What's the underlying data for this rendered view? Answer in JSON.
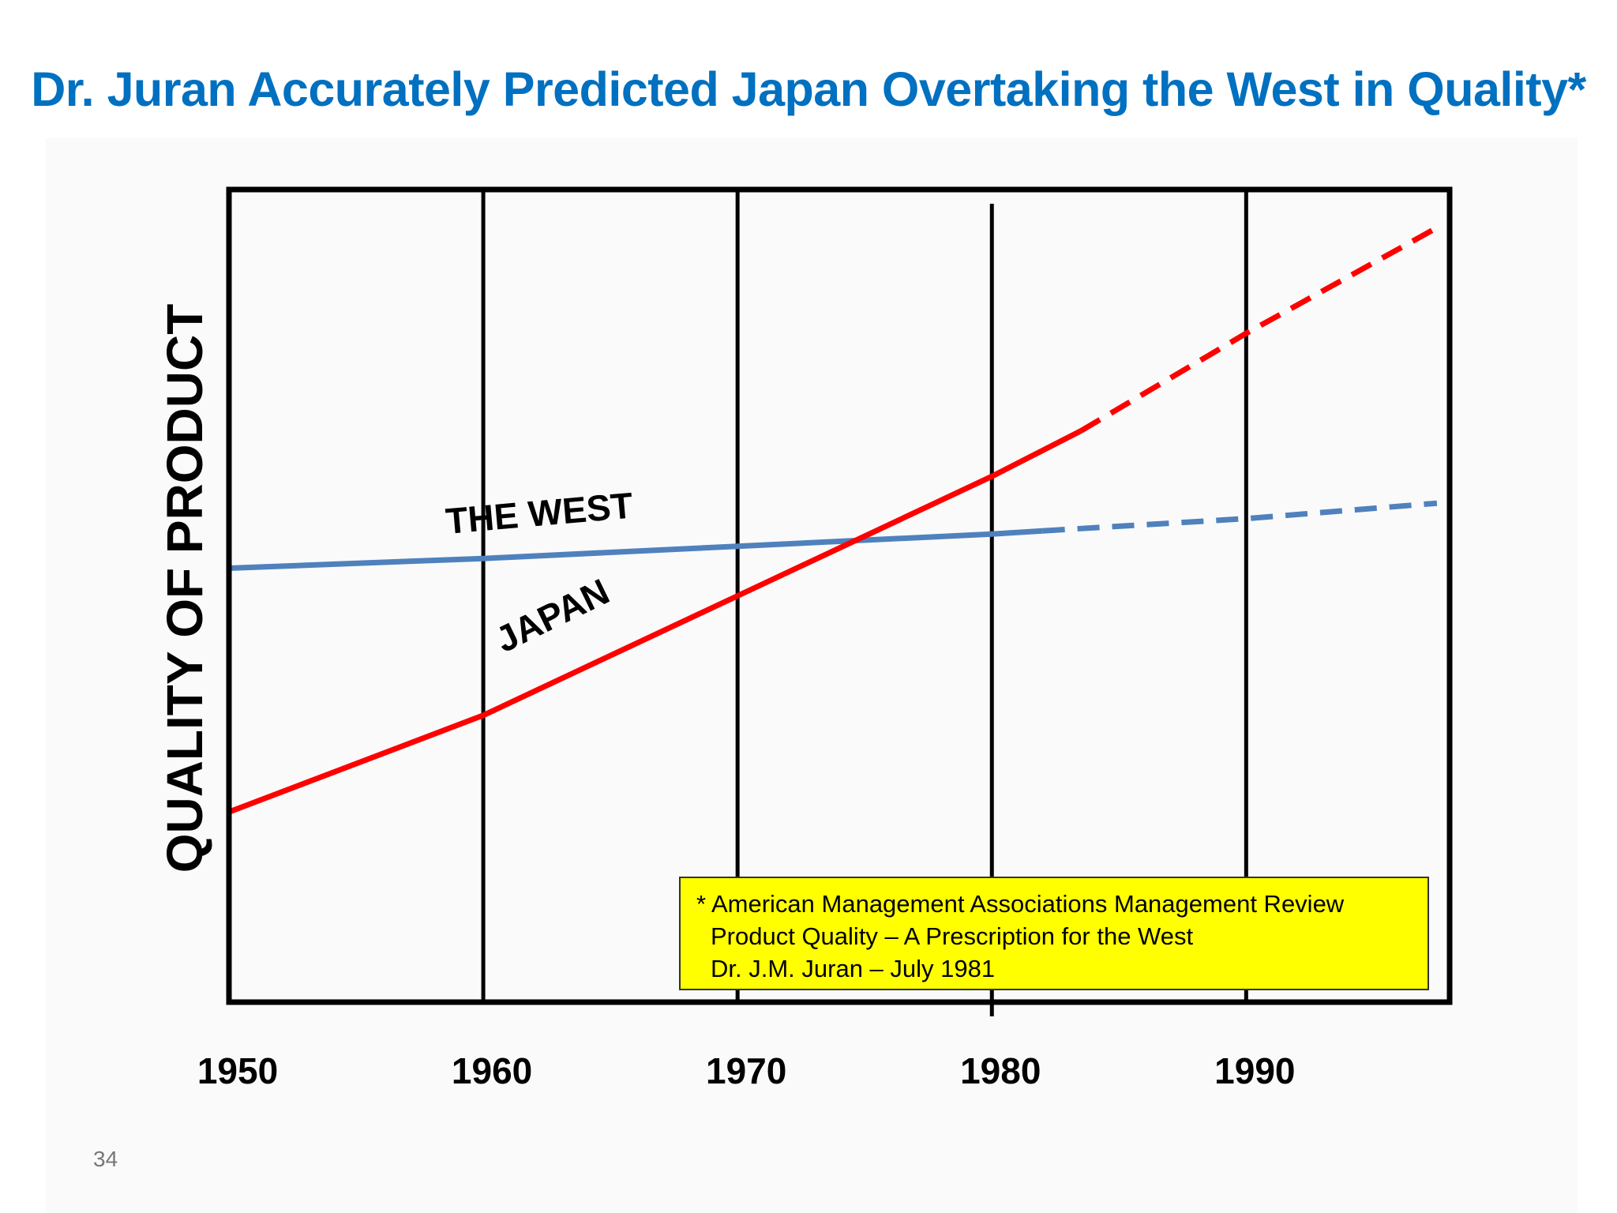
{
  "slide": {
    "title": "Dr. Juran Accurately Predicted Japan Overtaking the West in Quality*",
    "page_number": "34"
  },
  "colors": {
    "title": "#0070c0",
    "west": "#4f81bd",
    "japan": "#ff0000",
    "note_bg": "#ffff00"
  },
  "chart_data": {
    "type": "line",
    "title": "",
    "xlabel": "",
    "ylabel": "QUALITY OF PRODUCT",
    "x_ticks": [
      "1950",
      "1960",
      "1970",
      "1980",
      "1990"
    ],
    "xlim": [
      1950,
      1998
    ],
    "ylim": [
      0,
      100
    ],
    "grid": "vertical lines at each decade",
    "series": [
      {
        "name": "THE WEST",
        "color": "#4f81bd",
        "solid": [
          [
            1950,
            53.4
          ],
          [
            1960,
            54.6
          ],
          [
            1970,
            56.1
          ],
          [
            1980,
            57.6
          ],
          [
            1982,
            58.0
          ]
        ],
        "dashed": [
          [
            1982,
            58.0
          ],
          [
            1990,
            59.5
          ],
          [
            1997.5,
            61.4
          ]
        ]
      },
      {
        "name": "JAPAN",
        "color": "#ff0000",
        "solid": [
          [
            1950,
            23.4
          ],
          [
            1960,
            35.3
          ],
          [
            1970,
            50.0
          ],
          [
            1980,
            64.7
          ],
          [
            1983.5,
            70.3
          ]
        ],
        "dashed": [
          [
            1983.5,
            70.3
          ],
          [
            1990,
            82.3
          ],
          [
            1997.5,
            95.3
          ]
        ]
      }
    ],
    "annotations": [
      "* American Management Associations Management Review",
      "Product Quality – A Prescription for the West",
      "Dr. J.M. Juran – July 1981"
    ]
  }
}
